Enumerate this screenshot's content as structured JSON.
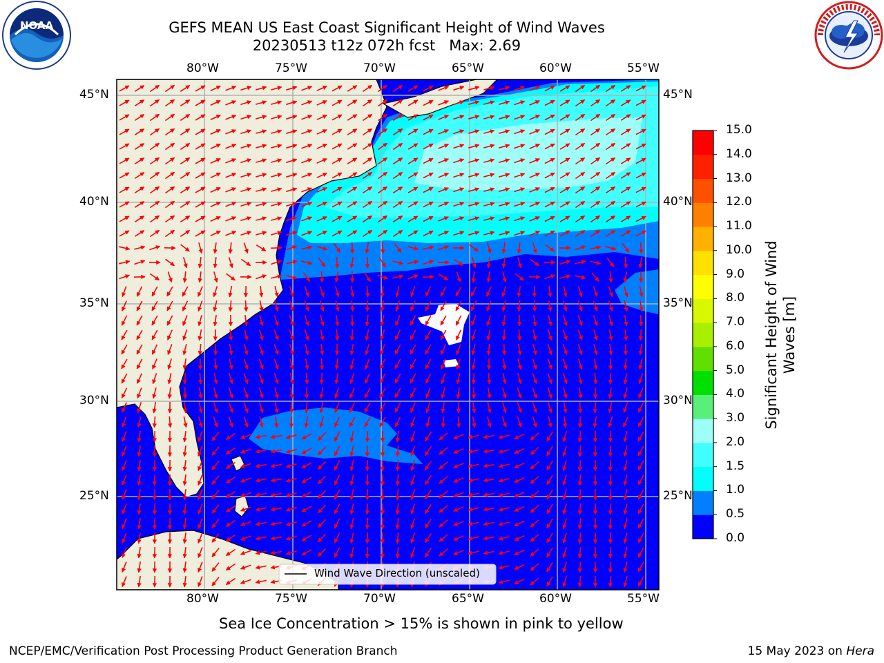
{
  "header": {
    "title_line1": "GEFS MEAN US East Coast Significant Height of Wind Waves",
    "title_line2": "20230513 t12z 072h fcst   Max: 2.69"
  },
  "logos": {
    "left": {
      "name": "noaa-logo",
      "text": "NOAA",
      "ring_text": "NATIONAL OCEANIC AND ATMOSPHERIC ADMINISTRATION · U.S. DEPARTMENT OF COMMERCE"
    },
    "right": {
      "name": "nws-logo",
      "ring_text": "NATIONAL WEATHER SERVICE"
    }
  },
  "map": {
    "lon_labels": [
      "80°W",
      "75°W",
      "70°W",
      "65°W",
      "60°W",
      "55°W"
    ],
    "lat_labels": [
      "45°N",
      "40°N",
      "35°N",
      "30°N",
      "25°N"
    ],
    "legend_label": "Wind Wave Direction (unscaled)",
    "land_color": "#efeedd",
    "arrow_color": "#ff0000",
    "grid_color": "#b0b0b0"
  },
  "colorbar": {
    "title": "Significant Height of Wind Waves [m]",
    "title_line1": "Significant Height of Wind",
    "title_line2": "Waves [m]",
    "ticks": [
      "15.0",
      "14.0",
      "13.0",
      "12.0",
      "11.0",
      "10.0",
      "9.0",
      "8.0",
      "7.0",
      "6.0",
      "5.0",
      "4.0",
      "3.0",
      "2.0",
      "1.5",
      "1.0",
      "0.5",
      "0.0"
    ],
    "colors": [
      "#0000ff",
      "#0080ff",
      "#00ffff",
      "#40ffff",
      "#9efef8",
      "#58f078",
      "#00e000",
      "#60e000",
      "#a8f000",
      "#d8f800",
      "#ffff00",
      "#ffe000",
      "#ffb000",
      "#ff8000",
      "#ff5000",
      "#ff2000",
      "#ff0000"
    ]
  },
  "footer": {
    "note": "Sea Ice Concentration > 15% is shown in pink to yellow",
    "credit": "NCEP/EMC/Verification Post Processing Product Generation Branch",
    "date_prefix": "15 May 2023 on ",
    "machine": "Hera"
  }
}
